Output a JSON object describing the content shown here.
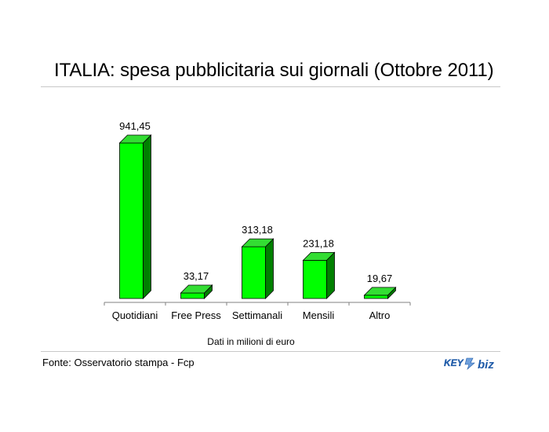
{
  "title": "ITALIA: spesa pubblicitaria sui giornali (Ottobre 2011)",
  "note": "Dati in milioni di euro",
  "source": "Fonte: Osservatorio stampa - Fcp",
  "logo": {
    "text_left": "KEY",
    "text_right": "biz",
    "color_left": "#1e5aa8",
    "color_right": "#1e5aa8"
  },
  "colors": {
    "bar_front": "#00ff00",
    "bar_side": "#008000",
    "bar_top": "#33dd33",
    "outline": "#000000"
  },
  "chart_data": {
    "type": "bar",
    "categories": [
      "Quotidiani",
      "Free Press",
      "Settimanali",
      "Mensili",
      "Altro"
    ],
    "values": [
      941.45,
      33.17,
      313.18,
      231.18,
      19.67
    ],
    "value_labels": [
      "941,45",
      "33,17",
      "313,18",
      "231,18",
      "19,67"
    ],
    "title": "ITALIA: spesa pubblicitaria sui giornali (Ottobre 2011)",
    "xlabel": "Dati in milioni di euro",
    "ylabel": "",
    "grid": false,
    "legend": "none",
    "style": "3d"
  }
}
